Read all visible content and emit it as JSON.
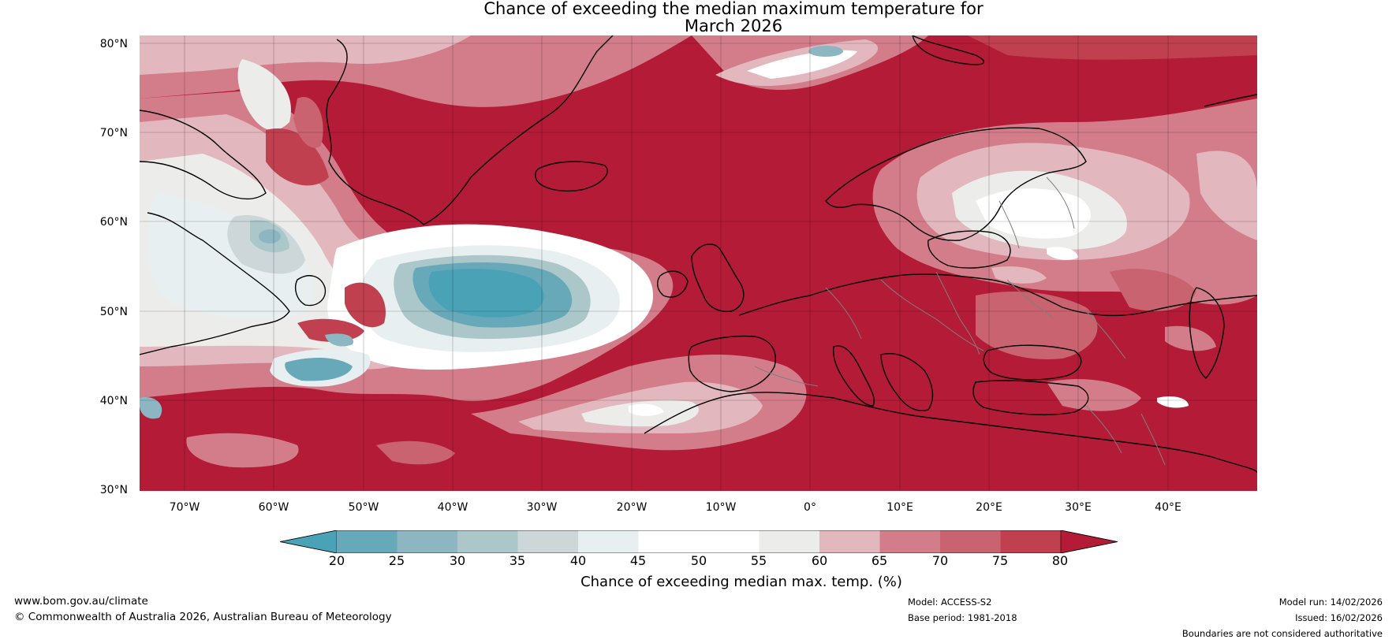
{
  "title": {
    "line1": "Chance of exceeding the median maximum temperature for",
    "line2": "March 2026"
  },
  "map": {
    "latitude_labels": [
      "80°N",
      "70°N",
      "60°N",
      "50°N",
      "40°N",
      "30°N"
    ],
    "longitude_labels": [
      "70°W",
      "60°W",
      "50°W",
      "40°W",
      "30°W",
      "20°W",
      "10°W",
      "0°",
      "10°E",
      "20°E",
      "30°E",
      "40°E"
    ],
    "extent": {
      "lon_min": -75,
      "lon_max": 50,
      "lat_min": 30,
      "lat_max": 81
    },
    "dominant_color": "#b31b37",
    "regions": [
      {
        "area": "Labrador Sea / Newfoundland",
        "level": "near-median mixed"
      },
      {
        "area": "North Atlantic 40-55W",
        "level": "below median (20-30%)"
      },
      {
        "area": "Central North Atlantic",
        "level": "above 80%"
      },
      {
        "area": "Scandinavia / Baltic",
        "level": "mixed 50-75%"
      },
      {
        "area": "Mediterranean",
        "level": "above 80%"
      }
    ]
  },
  "colorbar": {
    "tick_labels": [
      "20",
      "25",
      "30",
      "35",
      "40",
      "45",
      "50",
      "55",
      "60",
      "65",
      "70",
      "75",
      "80"
    ],
    "colors": [
      "#4aa2b7",
      "#68a9b9",
      "#8db6c3",
      "#abc7ca",
      "#cdd7da",
      "#e8eff1",
      "#ffffff",
      "#ffffff",
      "#ececea",
      "#e2b8be",
      "#d47d8a",
      "#c96370",
      "#c0404f",
      "#b31b37"
    ],
    "label": "Chance of exceeding median max. temp. (%)"
  },
  "footer": {
    "website": "www.bom.gov.au/climate",
    "copyright": "© Commonwealth of Australia 2026, Australian Bureau of Meteorology",
    "model": "Model: ACCESS-S2",
    "base_period": "Base period: 1981-2018",
    "model_run": "Model run: 14/02/2026",
    "issued": "Issued: 16/02/2026",
    "disclaimer": "Boundaries are not considered authoritative"
  }
}
